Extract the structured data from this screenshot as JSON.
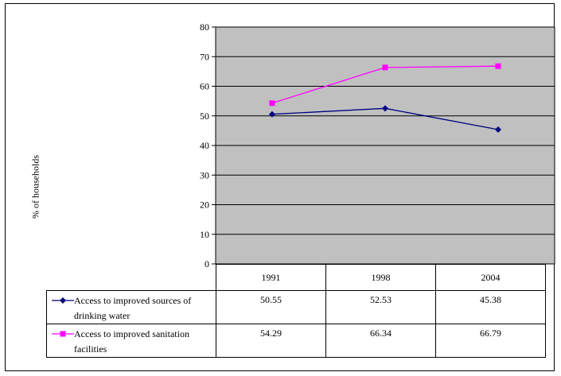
{
  "chart_data": {
    "type": "line",
    "ylabel": "% of households",
    "ylim": [
      0,
      80
    ],
    "yticks": [
      0,
      10,
      20,
      30,
      40,
      50,
      60,
      70,
      80
    ],
    "categories": [
      "1991",
      "1998",
      "2004"
    ],
    "grid": true,
    "plot_background": "#c0c0c0",
    "legend_placement": "data-table-below",
    "series": [
      {
        "name": "Access to improved sources of drinking water",
        "values": [
          50.55,
          52.53,
          45.38
        ],
        "display_values": [
          "50.55",
          "52.53",
          "45.38"
        ],
        "color": "#000080",
        "marker": "diamond"
      },
      {
        "name": "Access to improved sanitation facilities",
        "values": [
          54.29,
          66.34,
          66.79
        ],
        "display_values": [
          "54.29",
          "66.34",
          "66.79"
        ],
        "color": "#ff00ff",
        "marker": "square"
      }
    ]
  }
}
